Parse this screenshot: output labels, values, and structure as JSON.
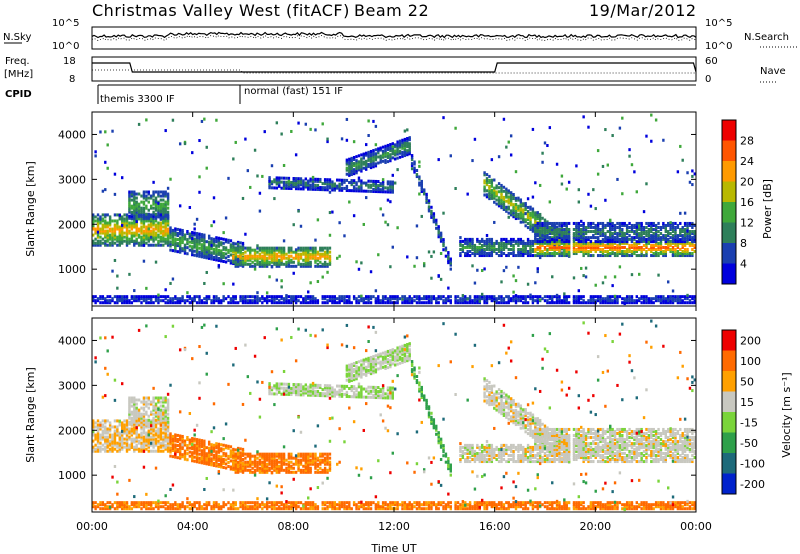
{
  "header": {
    "station": "Christmas Valley West (fitACF)",
    "beam": "Beam 22",
    "date": "19/Mar/2012"
  },
  "strip_labels": {
    "nsky": "N.Sky",
    "nsky_ticks": [
      "10^5",
      "10^0"
    ],
    "nsearch": "N.Search",
    "nsearch_ticks": [
      "10^5",
      "10^0"
    ],
    "freq": "Freq.",
    "freq_unit": "[MHz]",
    "freq_ticks": [
      "18",
      "8"
    ],
    "nave": "Nave",
    "nave_ticks": [
      "60",
      "0"
    ],
    "cpid": "CPID",
    "cpid_modes": [
      "themis 3300 IF",
      "normal (fast) 151 IF"
    ]
  },
  "colors": {
    "power": [
      "#0000dd",
      "#1a3fb0",
      "#2e7f5a",
      "#3fa83a",
      "#b8b800",
      "#ff9a00",
      "#ff5500",
      "#ee0000"
    ],
    "velocity": [
      "#0022cc",
      "#1d6a7a",
      "#2ea04a",
      "#7ad43a",
      "#c8c8c0",
      "#ffa000",
      "#ff6a00",
      "#ee0000"
    ]
  },
  "chart_data": [
    {
      "type": "heatmap",
      "quantity": "power",
      "ylabel": "Slant Range [km]",
      "yticks": [
        "4000",
        "3000",
        "2000",
        "1000"
      ],
      "ylim": [
        180,
        4500
      ],
      "xlim": [
        0,
        24
      ],
      "xticks": [
        "00:00",
        "04:00",
        "08:00",
        "12:00",
        "16:00",
        "20:00",
        "00:00"
      ],
      "colorbar_label": "Power [dB]",
      "colorbar_ticks": [
        "28",
        "24",
        "20",
        "16",
        "12",
        "8",
        "4"
      ],
      "colorbar_range": [
        0,
        32
      ]
    },
    {
      "type": "heatmap",
      "quantity": "velocity",
      "ylabel": "Slant Range [km]",
      "yticks": [
        "4000",
        "3000",
        "2000",
        "1000"
      ],
      "ylim": [
        180,
        4500
      ],
      "xlim": [
        0,
        24
      ],
      "xticks": [
        "00:00",
        "04:00",
        "08:00",
        "12:00",
        "16:00",
        "20:00",
        "00:00"
      ],
      "xlabel": "Time UT",
      "colorbar_label": "Velocity [m s⁻¹]",
      "colorbar_ticks": [
        "200",
        "100",
        "50",
        "15",
        "-15",
        "-50",
        "-100",
        "-200"
      ]
    }
  ]
}
